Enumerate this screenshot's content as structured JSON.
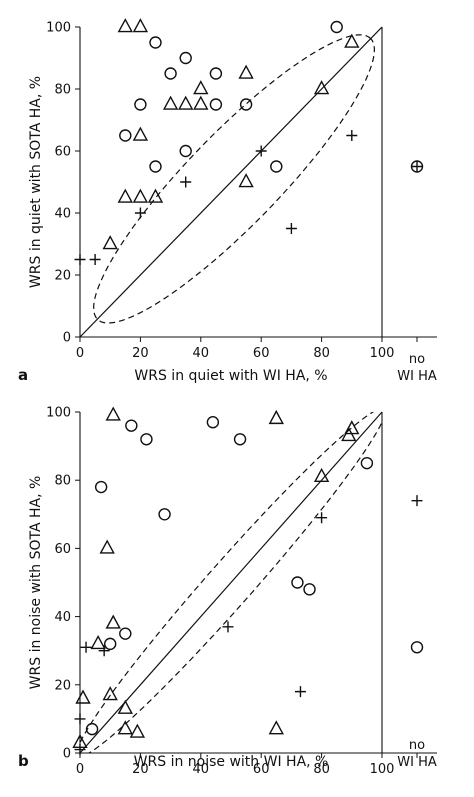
{
  "chart_data": [
    {
      "panel": "a",
      "type": "scatter",
      "xlabel": "WRS in quiet with WI HA, %",
      "ylabel": "WRS in quiet with SOTA HA, %",
      "xlim": [
        0,
        100
      ],
      "ylim": [
        0,
        100
      ],
      "x_ticks": [
        "0",
        "20",
        "40",
        "60",
        "80",
        "100"
      ],
      "y_ticks": [
        "0",
        "20",
        "40",
        "60",
        "80",
        "100"
      ],
      "extra_x_label": [
        "no",
        "WI HA"
      ],
      "grid": false,
      "series": [
        {
          "marker": "circle",
          "points": [
            [
              85,
              100
            ],
            [
              25,
              95
            ],
            [
              15,
              65
            ],
            [
              20,
              75
            ],
            [
              30,
              85
            ],
            [
              35,
              90
            ],
            [
              45,
              85
            ],
            [
              45,
              75
            ],
            [
              55,
              75
            ],
            [
              35,
              60
            ],
            [
              25,
              55
            ],
            [
              65,
              55
            ]
          ],
          "no_wi_ha": [
            55
          ]
        },
        {
          "marker": "triangle",
          "points": [
            [
              15,
              100
            ],
            [
              20,
              100
            ],
            [
              90,
              95
            ],
            [
              55,
              85
            ],
            [
              40,
              80
            ],
            [
              80,
              80
            ],
            [
              30,
              75
            ],
            [
              35,
              75
            ],
            [
              40,
              75
            ],
            [
              20,
              65
            ],
            [
              15,
              45
            ],
            [
              20,
              45
            ],
            [
              25,
              45
            ],
            [
              55,
              50
            ],
            [
              10,
              30
            ]
          ],
          "no_wi_ha": []
        },
        {
          "marker": "plus",
          "points": [
            [
              90,
              65
            ],
            [
              60,
              60
            ],
            [
              35,
              50
            ],
            [
              20,
              40
            ],
            [
              70,
              35
            ],
            [
              0,
              25
            ],
            [
              5,
              25
            ]
          ],
          "no_wi_ha": [
            55
          ]
        }
      ]
    },
    {
      "panel": "b",
      "type": "scatter",
      "xlabel": "WRS in noise with WI HA, %",
      "ylabel": "WRS in noise with SOTA HA, %",
      "xlim": [
        0,
        100
      ],
      "ylim": [
        0,
        100
      ],
      "x_ticks": [
        "0",
        "20",
        "40",
        "60",
        "80",
        "100"
      ],
      "y_ticks": [
        "0",
        "20",
        "40",
        "60",
        "80",
        "100"
      ],
      "extra_x_label": [
        "no",
        "WI HA"
      ],
      "grid": false,
      "series": [
        {
          "marker": "circle",
          "points": [
            [
              44,
              97
            ],
            [
              17,
              96
            ],
            [
              22,
              92
            ],
            [
              53,
              92
            ],
            [
              7,
              78
            ],
            [
              95,
              85
            ],
            [
              28,
              70
            ],
            [
              72,
              50
            ],
            [
              76,
              48
            ],
            [
              15,
              35
            ],
            [
              10,
              32
            ],
            [
              4,
              7
            ]
          ],
          "no_wi_ha": [
            31
          ]
        },
        {
          "marker": "triangle",
          "points": [
            [
              11,
              99
            ],
            [
              65,
              98
            ],
            [
              89,
              93
            ],
            [
              90,
              95
            ],
            [
              80,
              81
            ],
            [
              9,
              60
            ],
            [
              11,
              38
            ],
            [
              6,
              32
            ],
            [
              1,
              16
            ],
            [
              10,
              17
            ],
            [
              15,
              13
            ],
            [
              15,
              7
            ],
            [
              19,
              6
            ],
            [
              65,
              7
            ],
            [
              0,
              3
            ]
          ],
          "no_wi_ha": []
        },
        {
          "marker": "plus",
          "points": [
            [
              80,
              69
            ],
            [
              49,
              37
            ],
            [
              2,
              31
            ],
            [
              8,
              30
            ],
            [
              73,
              18
            ],
            [
              0,
              10
            ],
            [
              0,
              1
            ]
          ],
          "no_wi_ha": [
            74
          ]
        }
      ]
    }
  ]
}
